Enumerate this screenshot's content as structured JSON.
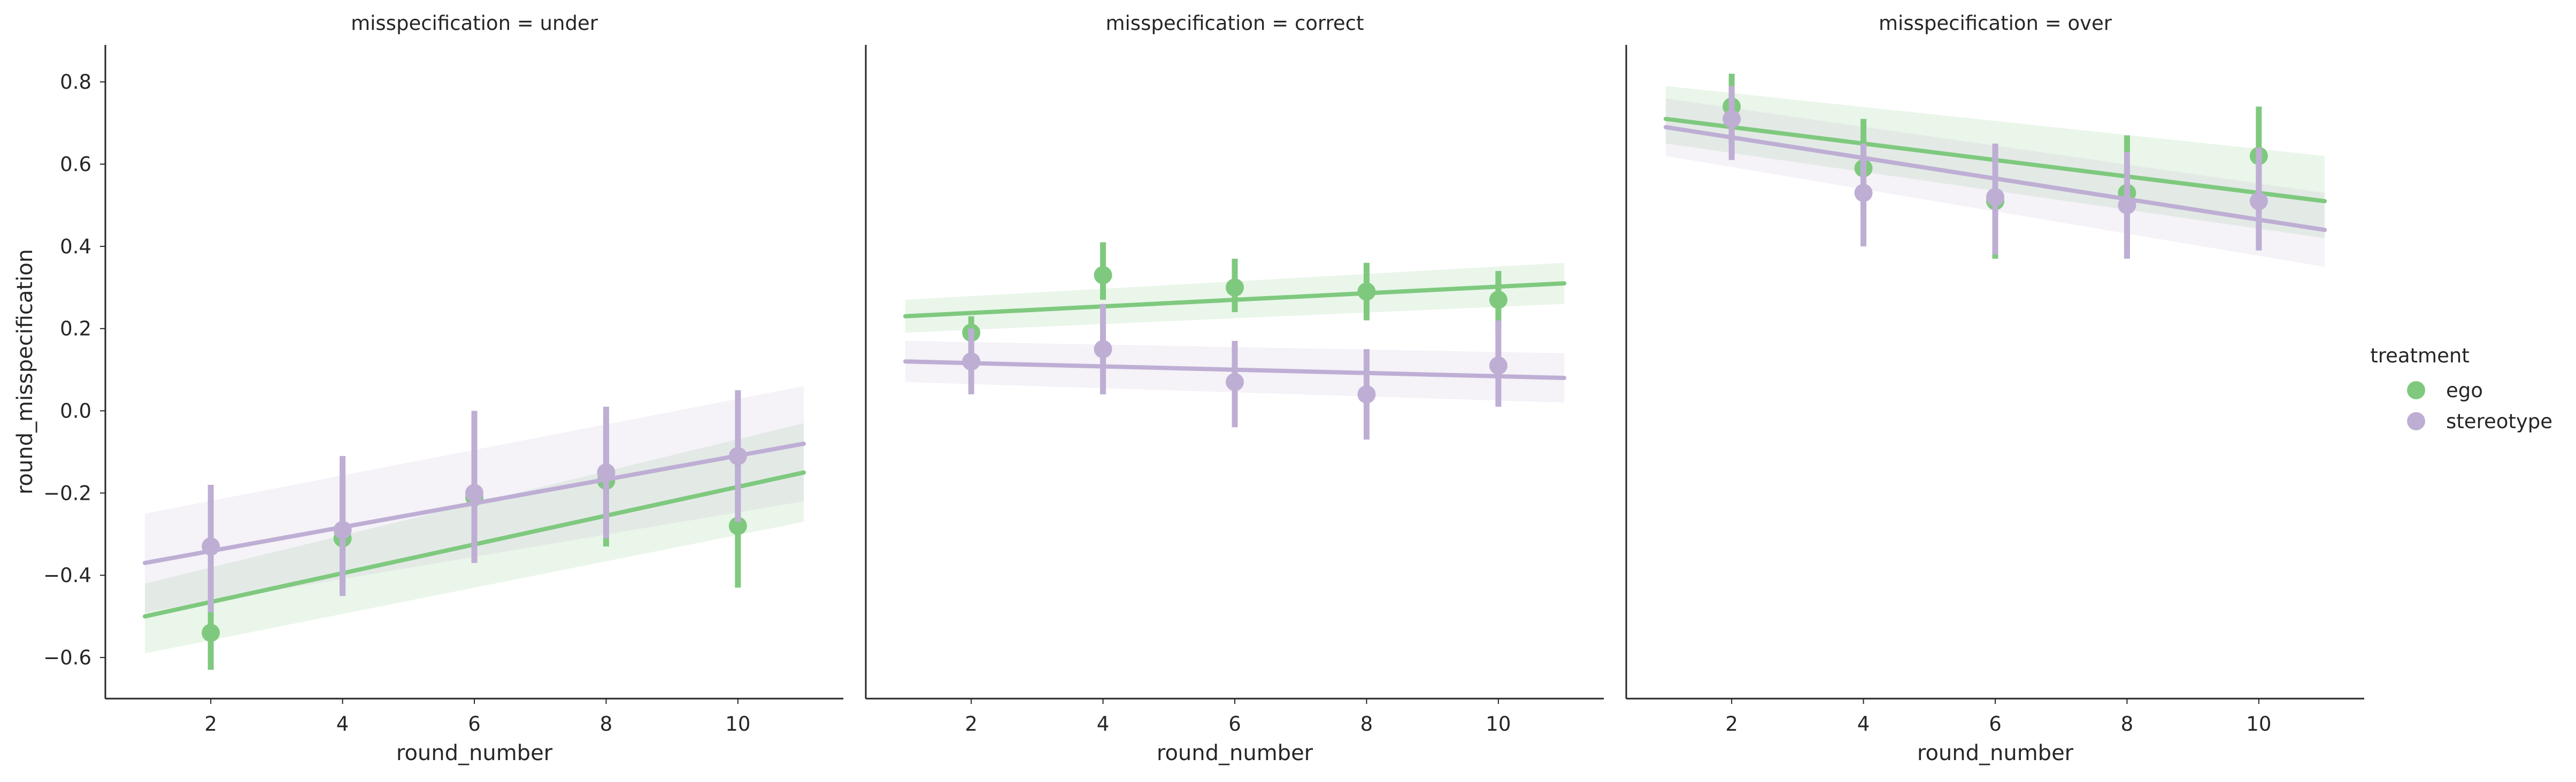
{
  "colors": {
    "ego": "#7fc97f",
    "stereotype": "#beaed4",
    "axis": "#262626"
  },
  "chart_data": {
    "type": "scatter",
    "facet_variable": "misspecification",
    "panel_titles": [
      "misspecification = under",
      "misspecification = correct",
      "misspecification = over"
    ],
    "xlabel": "round_number",
    "ylabel": "round_misspecification",
    "xlim": [
      0.4,
      11.6
    ],
    "ylim": [
      -0.7,
      0.89
    ],
    "x_ticks": [
      2,
      4,
      6,
      8,
      10
    ],
    "y_ticks": [
      -0.6,
      -0.4,
      -0.2,
      0.0,
      0.2,
      0.4,
      0.6,
      0.8
    ],
    "y_tick_labels": [
      "−0.6",
      "−0.4",
      "−0.2",
      "0.0",
      "0.2",
      "0.4",
      "0.6",
      "0.8"
    ],
    "grid": false,
    "legend": {
      "title": "treatment",
      "position": "right",
      "entries": [
        "ego",
        "stereotype"
      ]
    },
    "panels": [
      {
        "misspecification": "under",
        "series": [
          {
            "name": "ego",
            "x": [
              2,
              4,
              6,
              8,
              10
            ],
            "y": [
              -0.54,
              -0.31,
              -0.21,
              -0.17,
              -0.28
            ],
            "ci_low": [
              -0.63,
              -0.45,
              -0.37,
              -0.33,
              -0.43
            ],
            "ci_high": [
              -0.46,
              -0.17,
              -0.03,
              -0.02,
              -0.13
            ],
            "fit_line": {
              "x": [
                1,
                11
              ],
              "y": [
                -0.5,
                -0.15
              ]
            },
            "fit_band_low": [
              -0.59,
              -0.27
            ],
            "fit_band_high": [
              -0.42,
              -0.03
            ]
          },
          {
            "name": "stereotype",
            "x": [
              2,
              4,
              6,
              8,
              10
            ],
            "y": [
              -0.33,
              -0.29,
              -0.2,
              -0.15,
              -0.11
            ],
            "ci_low": [
              -0.49,
              -0.45,
              -0.37,
              -0.31,
              -0.27
            ],
            "ci_high": [
              -0.18,
              -0.11,
              0.0,
              0.01,
              0.05
            ],
            "fit_line": {
              "x": [
                1,
                11
              ],
              "y": [
                -0.37,
                -0.08
              ]
            },
            "fit_band_low": [
              -0.49,
              -0.22
            ],
            "fit_band_high": [
              -0.25,
              0.06
            ]
          }
        ]
      },
      {
        "misspecification": "correct",
        "series": [
          {
            "name": "ego",
            "x": [
              2,
              4,
              6,
              8,
              10
            ],
            "y": [
              0.19,
              0.33,
              0.3,
              0.29,
              0.27
            ],
            "ci_low": [
              0.14,
              0.27,
              0.24,
              0.22,
              0.19
            ],
            "ci_high": [
              0.23,
              0.41,
              0.37,
              0.36,
              0.34
            ],
            "fit_line": {
              "x": [
                1,
                11
              ],
              "y": [
                0.23,
                0.31
              ]
            },
            "fit_band_low": [
              0.19,
              0.26
            ],
            "fit_band_high": [
              0.27,
              0.36
            ]
          },
          {
            "name": "stereotype",
            "x": [
              2,
              4,
              6,
              8,
              10
            ],
            "y": [
              0.12,
              0.15,
              0.07,
              0.04,
              0.11
            ],
            "ci_low": [
              0.04,
              0.04,
              -0.04,
              -0.07,
              0.01
            ],
            "ci_high": [
              0.2,
              0.26,
              0.17,
              0.15,
              0.22
            ],
            "fit_line": {
              "x": [
                1,
                11
              ],
              "y": [
                0.12,
                0.08
              ]
            },
            "fit_band_low": [
              0.07,
              0.02
            ],
            "fit_band_high": [
              0.17,
              0.14
            ]
          }
        ]
      },
      {
        "misspecification": "over",
        "series": [
          {
            "name": "ego",
            "x": [
              2,
              4,
              6,
              8,
              10
            ],
            "y": [
              0.74,
              0.59,
              0.51,
              0.53,
              0.62
            ],
            "ci_low": [
              0.65,
              0.47,
              0.37,
              0.39,
              0.48
            ],
            "ci_high": [
              0.82,
              0.71,
              0.64,
              0.67,
              0.74
            ],
            "fit_line": {
              "x": [
                1,
                11
              ],
              "y": [
                0.71,
                0.51
              ]
            },
            "fit_band_low": [
              0.65,
              0.42
            ],
            "fit_band_high": [
              0.79,
              0.62
            ]
          },
          {
            "name": "stereotype",
            "x": [
              2,
              4,
              6,
              8,
              10
            ],
            "y": [
              0.71,
              0.53,
              0.52,
              0.5,
              0.51
            ],
            "ci_low": [
              0.61,
              0.4,
              0.38,
              0.37,
              0.39
            ],
            "ci_high": [
              0.79,
              0.65,
              0.65,
              0.63,
              0.64
            ],
            "fit_line": {
              "x": [
                1,
                11
              ],
              "y": [
                0.69,
                0.44
              ]
            },
            "fit_band_low": [
              0.62,
              0.35
            ],
            "fit_band_high": [
              0.76,
              0.53
            ]
          }
        ]
      }
    ]
  }
}
